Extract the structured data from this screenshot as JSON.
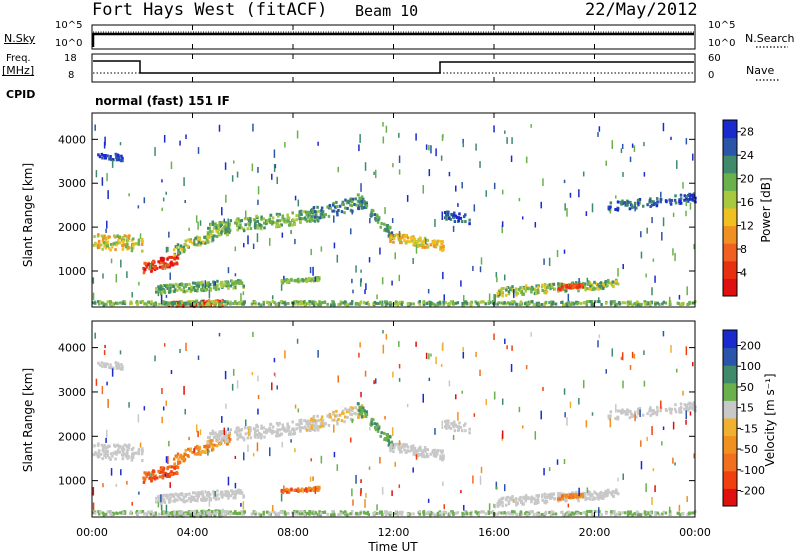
{
  "header": {
    "station": "Fort Hays West (fitACF)",
    "beam": "Beam 10",
    "date": "22/May/2012"
  },
  "status_panels": {
    "nsky_label": "N.Sky",
    "nsearch_label": "N.Search",
    "nsky_ticks": [
      "10^5",
      "10^0"
    ],
    "nsearch_ticks": [
      "10^5",
      "10^0"
    ],
    "freq_label": "Freq.",
    "freq_unit": "[MHz]",
    "freq_ticks": [
      "18",
      "8"
    ],
    "nave_label": "Nave",
    "nave_ticks": [
      "60",
      "0"
    ],
    "cpid_label": "CPID",
    "cpid_value": "normal (fast) 151 IF"
  },
  "colors": {
    "power": [
      "#1a2acc",
      "#2b55a8",
      "#3f8a6a",
      "#6ab04c",
      "#a8c840",
      "#f0c020",
      "#f09020",
      "#f06020",
      "#e83010",
      "#e01010"
    ],
    "velocity": [
      "#1a2acc",
      "#2b55a8",
      "#3f8a6a",
      "#6ab04c",
      "#c8c8c8",
      "#f0b030",
      "#f09020",
      "#f07020",
      "#f04010",
      "#e01010"
    ]
  },
  "chart_data": [
    {
      "type": "heatmap",
      "name": "power",
      "ylabel": "Slant Range [km]",
      "ylim": [
        180,
        4600
      ],
      "y_ticks": [
        "4000",
        "3000",
        "2000",
        "1000"
      ],
      "y_tick_values": [
        4000,
        3000,
        2000,
        1000
      ],
      "xlim": [
        0,
        24
      ],
      "colorbar_label": "Power [dB]",
      "colorbar_ticks": [
        "28",
        "24",
        "20",
        "16",
        "12",
        "8",
        "4"
      ],
      "colorbar_tick_values": [
        28,
        24,
        20,
        16,
        12,
        8,
        4
      ],
      "colorbar_range": [
        0,
        30
      ]
    },
    {
      "type": "heatmap",
      "name": "velocity",
      "ylabel": "Slant Range [km]",
      "ylim": [
        180,
        4600
      ],
      "y_ticks": [
        "4000",
        "3000",
        "2000",
        "1000"
      ],
      "y_tick_values": [
        4000,
        3000,
        2000,
        1000
      ],
      "xlim": [
        0,
        24
      ],
      "xlabel": "Time UT",
      "x_ticks": [
        "00:00",
        "04:00",
        "08:00",
        "12:00",
        "16:00",
        "20:00",
        "00:00"
      ],
      "x_tick_values": [
        0,
        4,
        8,
        12,
        16,
        20,
        24
      ],
      "colorbar_label": "Velocity [m s⁻¹]",
      "colorbar_ticks": [
        "200",
        "100",
        "50",
        "15",
        "-15",
        "-50",
        "-100",
        "-200"
      ]
    }
  ]
}
